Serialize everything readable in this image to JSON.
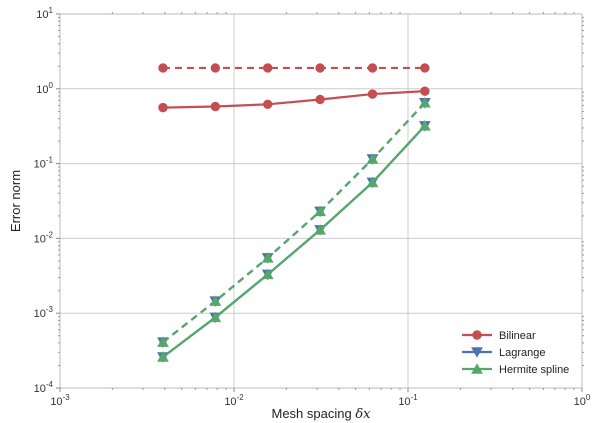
{
  "chart_data": {
    "type": "line",
    "xlabel": "Mesh spacing",
    "xlabel_symbol": "δx",
    "ylabel": "Error norm",
    "xscale": "log",
    "yscale": "log",
    "xlim": [
      0.001,
      1
    ],
    "ylim": [
      0.0001,
      10
    ],
    "grid": true,
    "legend_position": "bottom-right",
    "x_ticks": [
      {
        "base": "10",
        "exp": "-3"
      },
      {
        "base": "10",
        "exp": "-2"
      },
      {
        "base": "10",
        "exp": "-1"
      },
      {
        "base": "10",
        "exp": "0"
      }
    ],
    "y_ticks": [
      {
        "base": "10",
        "exp": "-4"
      },
      {
        "base": "10",
        "exp": "-3"
      },
      {
        "base": "10",
        "exp": "-2"
      },
      {
        "base": "10",
        "exp": "-1"
      },
      {
        "base": "10",
        "exp": "0"
      },
      {
        "base": "10",
        "exp": "1"
      }
    ],
    "x": [
      0.00390625,
      0.0078125,
      0.015625,
      0.03125,
      0.0625,
      0.125
    ],
    "series": [
      {
        "name": "Bilinear",
        "legend": true,
        "color": "#c44e52",
        "marker": "circle",
        "dashed": false,
        "values": [
          0.56,
          0.58,
          0.62,
          0.72,
          0.85,
          0.93
        ]
      },
      {
        "name": "",
        "legend": false,
        "color": "#c44e52",
        "marker": "circle",
        "dashed": true,
        "values": [
          1.9,
          1.9,
          1.9,
          1.9,
          1.9,
          1.9
        ]
      },
      {
        "name": "Lagrange",
        "legend": true,
        "color": "#4c72b0",
        "marker": "triangle-down",
        "dashed": false,
        "values": [
          0.00026,
          0.00088,
          0.0033,
          0.013,
          0.056,
          0.32
        ]
      },
      {
        "name": "",
        "legend": false,
        "color": "#4c72b0",
        "marker": "triangle-down",
        "dashed": true,
        "values": [
          0.00041,
          0.00145,
          0.0055,
          0.023,
          0.115,
          0.65
        ]
      },
      {
        "name": "Hermite spline",
        "legend": true,
        "color": "#55a868",
        "marker": "triangle-up",
        "dashed": false,
        "values": [
          0.00026,
          0.00088,
          0.0033,
          0.013,
          0.056,
          0.32
        ]
      },
      {
        "name": "",
        "legend": false,
        "color": "#55a868",
        "marker": "triangle-up",
        "dashed": true,
        "values": [
          0.00041,
          0.00145,
          0.0055,
          0.023,
          0.115,
          0.65
        ]
      }
    ]
  }
}
